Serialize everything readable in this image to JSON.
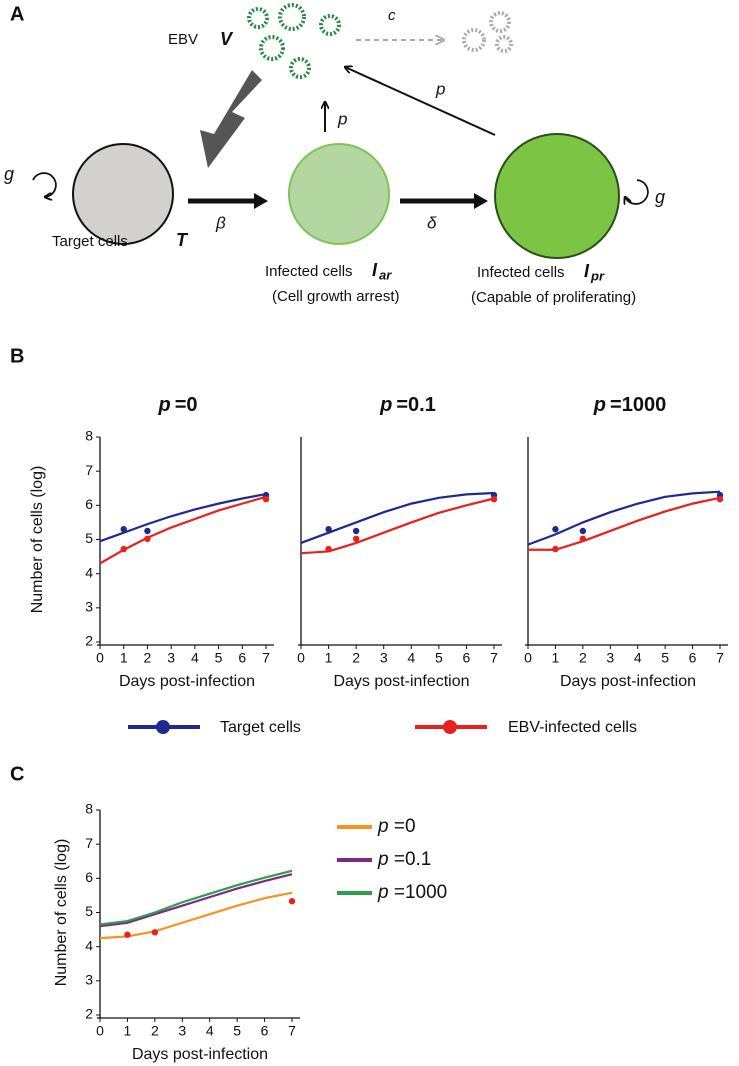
{
  "diagram": {
    "panel_label": "A",
    "virus_label": "EBV",
    "virus_symbol": "V",
    "clearance": "c",
    "production_1": "p",
    "production_2": "p",
    "growth_left": "g",
    "growth_right": "g",
    "infection": "β",
    "transition": "δ",
    "nodes": [
      {
        "label": "Target cells",
        "symbol": "T"
      },
      {
        "label": "Infected cells",
        "symbol": "I",
        "subscript": "ar",
        "note": "(Cell growth arrest)"
      },
      {
        "label": "Infected cells",
        "symbol": "I",
        "subscript": "pr",
        "note": "(Capable of proliferating)"
      }
    ]
  },
  "panel_b_label": "B",
  "panel_c_label": "C",
  "chart_data": [
    {
      "type": "line",
      "title_var": "p",
      "title_value": "=0",
      "xlabel": "Days post-infection",
      "ylabel": "Number of cells (log)",
      "x": [
        0,
        1,
        2,
        3,
        4,
        5,
        6,
        7
      ],
      "series": [
        {
          "name": "Target cells",
          "color": "#1f2a8f",
          "values": [
            4.95,
            5.2,
            5.45,
            5.68,
            5.88,
            6.05,
            6.2,
            6.33
          ]
        },
        {
          "name": "EBV-infected cells",
          "color": "#e8201f",
          "values": [
            4.3,
            4.7,
            5.05,
            5.35,
            5.6,
            5.85,
            6.05,
            6.25
          ]
        }
      ],
      "observed": [
        {
          "color": "#1f2a8f",
          "x": [
            1,
            2,
            7
          ],
          "values": [
            5.3,
            5.25,
            6.3
          ]
        },
        {
          "color": "#e8201f",
          "x": [
            1,
            2,
            7
          ],
          "values": [
            4.72,
            5.02,
            6.18
          ]
        }
      ],
      "xlim": [
        0,
        7
      ],
      "xticks": [
        0,
        1,
        2,
        3,
        4,
        5,
        6,
        7
      ],
      "ylim": [
        2,
        8
      ],
      "yticks": [
        2,
        3,
        4,
        5,
        6,
        7,
        8
      ]
    },
    {
      "type": "line",
      "title_var": "p",
      "title_value": "=0.1",
      "xlabel": "Days post-infection",
      "x": [
        0,
        1,
        2,
        3,
        4,
        5,
        6,
        7
      ],
      "series": [
        {
          "color": "#1f2a8f",
          "values": [
            4.9,
            5.2,
            5.5,
            5.8,
            6.05,
            6.22,
            6.32,
            6.36
          ]
        },
        {
          "color": "#e8201f",
          "values": [
            4.6,
            4.65,
            4.9,
            5.2,
            5.5,
            5.78,
            6.0,
            6.2
          ]
        }
      ],
      "observed": [
        {
          "color": "#1f2a8f",
          "x": [
            1,
            2,
            7
          ],
          "values": [
            5.3,
            5.25,
            6.3
          ]
        },
        {
          "color": "#e8201f",
          "x": [
            1,
            2,
            7
          ],
          "values": [
            4.72,
            5.02,
            6.18
          ]
        }
      ],
      "xlim": [
        0,
        7
      ],
      "xticks": [
        0,
        1,
        2,
        3,
        4,
        5,
        6,
        7
      ],
      "ylim": [
        2,
        8
      ]
    },
    {
      "type": "line",
      "title_var": "p",
      "title_value": "=1000",
      "xlabel": "Days post-infection",
      "x": [
        0,
        1,
        2,
        3,
        4,
        5,
        6,
        7
      ],
      "series": [
        {
          "color": "#1f2a8f",
          "values": [
            4.85,
            5.15,
            5.5,
            5.8,
            6.05,
            6.25,
            6.35,
            6.4
          ]
        },
        {
          "color": "#e8201f",
          "values": [
            4.7,
            4.7,
            4.95,
            5.25,
            5.55,
            5.82,
            6.05,
            6.22
          ]
        }
      ],
      "observed": [
        {
          "color": "#1f2a8f",
          "x": [
            1,
            2,
            7
          ],
          "values": [
            5.3,
            5.25,
            6.3
          ]
        },
        {
          "color": "#e8201f",
          "x": [
            1,
            2,
            7
          ],
          "values": [
            4.72,
            5.02,
            6.18
          ]
        }
      ],
      "xlim": [
        0,
        7
      ],
      "xticks": [
        0,
        1,
        2,
        3,
        4,
        5,
        6,
        7
      ],
      "ylim": [
        2,
        8
      ]
    },
    {
      "type": "line",
      "xlabel": "Days post-infection",
      "ylabel": "Number of cells (log)",
      "x": [
        0,
        1,
        2,
        3,
        4,
        5,
        6,
        7
      ],
      "series": [
        {
          "name": "p =0",
          "color": "#f7931e",
          "values": [
            4.25,
            4.3,
            4.45,
            4.7,
            4.95,
            5.2,
            5.42,
            5.58
          ]
        },
        {
          "name": "p =0.1",
          "color": "#7b2a84",
          "values": [
            4.6,
            4.7,
            4.95,
            5.2,
            5.45,
            5.7,
            5.92,
            6.12
          ]
        },
        {
          "name": "p =1000",
          "color": "#2e9e48",
          "values": [
            4.65,
            4.75,
            5.0,
            5.3,
            5.55,
            5.8,
            6.02,
            6.22
          ]
        }
      ],
      "observed": [
        {
          "color": "#e8201f",
          "x": [
            1,
            2,
            7
          ],
          "values": [
            4.35,
            4.42,
            5.33
          ]
        }
      ],
      "xlim": [
        0,
        7
      ],
      "xticks": [
        0,
        1,
        2,
        3,
        4,
        5,
        6,
        7
      ],
      "ylim": [
        2,
        8
      ],
      "yticks": [
        2,
        3,
        4,
        5,
        6,
        7,
        8
      ]
    }
  ]
}
